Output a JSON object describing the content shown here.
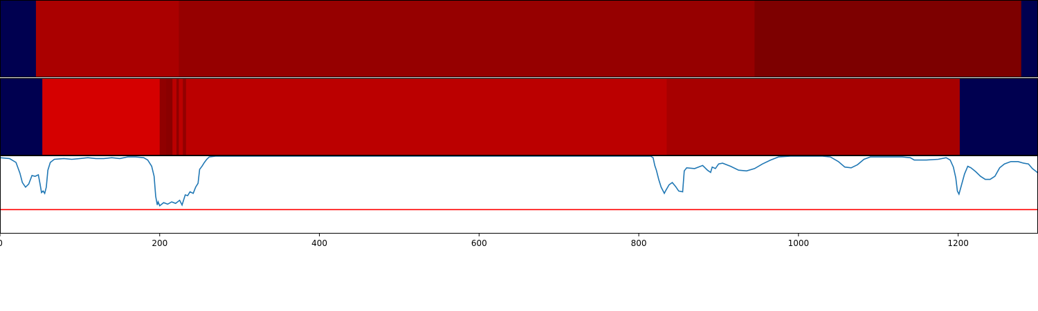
{
  "chart_data": [
    {
      "type": "heatmap",
      "panel": "top-band",
      "x": [
        0,
        1300
      ],
      "segments": [
        {
          "start": 0,
          "end": 45,
          "color": "#000050"
        },
        {
          "start": 45,
          "end": 224,
          "color": "#aa0000"
        },
        {
          "start": 224,
          "end": 945,
          "color": "#960000"
        },
        {
          "start": 945,
          "end": 1279,
          "color": "#7d0000"
        },
        {
          "start": 1279,
          "end": 1300,
          "color": "#000050"
        }
      ]
    },
    {
      "type": "heatmap",
      "panel": "middle-band",
      "x": [
        0,
        1300
      ],
      "segments": [
        {
          "start": 0,
          "end": 53,
          "color": "#000050"
        },
        {
          "start": 53,
          "end": 200,
          "color": "#d50000"
        },
        {
          "start": 200,
          "end": 208,
          "color": "#900000"
        },
        {
          "start": 208,
          "end": 216,
          "color": "#8a0000"
        },
        {
          "start": 216,
          "end": 221,
          "color": "#bb0000"
        },
        {
          "start": 221,
          "end": 224,
          "color": "#8f0000"
        },
        {
          "start": 224,
          "end": 229,
          "color": "#bb0000"
        },
        {
          "start": 229,
          "end": 233,
          "color": "#940000"
        },
        {
          "start": 233,
          "end": 835,
          "color": "#bb0000"
        },
        {
          "start": 835,
          "end": 1202,
          "color": "#a70000"
        },
        {
          "start": 1202,
          "end": 1300,
          "color": "#000050"
        }
      ]
    },
    {
      "type": "line",
      "panel": "bottom-line",
      "xlim": [
        0,
        1300
      ],
      "ylim": [
        0,
        1
      ],
      "xticks": [
        0,
        200,
        400,
        600,
        800,
        1000,
        1200
      ],
      "xtick_labels": [
        "0",
        "200",
        "400",
        "600",
        "800",
        "1000",
        "1200"
      ],
      "threshold": 0.31,
      "threshold_color": "#ff0000",
      "series_color": "#1f77b4",
      "points": [
        [
          0,
          0.98
        ],
        [
          12,
          0.97
        ],
        [
          20,
          0.92
        ],
        [
          25,
          0.78
        ],
        [
          28,
          0.66
        ],
        [
          32,
          0.6
        ],
        [
          36,
          0.64
        ],
        [
          40,
          0.75
        ],
        [
          44,
          0.74
        ],
        [
          48,
          0.76
        ],
        [
          50,
          0.65
        ],
        [
          52,
          0.53
        ],
        [
          54,
          0.55
        ],
        [
          56,
          0.52
        ],
        [
          58,
          0.6
        ],
        [
          60,
          0.82
        ],
        [
          63,
          0.92
        ],
        [
          68,
          0.96
        ],
        [
          80,
          0.97
        ],
        [
          90,
          0.96
        ],
        [
          100,
          0.97
        ],
        [
          110,
          0.98
        ],
        [
          120,
          0.97
        ],
        [
          130,
          0.97
        ],
        [
          140,
          0.98
        ],
        [
          150,
          0.97
        ],
        [
          160,
          0.99
        ],
        [
          170,
          0.99
        ],
        [
          180,
          0.98
        ],
        [
          185,
          0.95
        ],
        [
          190,
          0.87
        ],
        [
          193,
          0.74
        ],
        [
          195,
          0.48
        ],
        [
          197,
          0.37
        ],
        [
          198,
          0.41
        ],
        [
          200,
          0.36
        ],
        [
          205,
          0.4
        ],
        [
          210,
          0.38
        ],
        [
          215,
          0.41
        ],
        [
          220,
          0.39
        ],
        [
          225,
          0.43
        ],
        [
          228,
          0.37
        ],
        [
          232,
          0.5
        ],
        [
          235,
          0.49
        ],
        [
          238,
          0.54
        ],
        [
          242,
          0.52
        ],
        [
          245,
          0.6
        ],
        [
          248,
          0.65
        ],
        [
          250,
          0.83
        ],
        [
          253,
          0.87
        ],
        [
          256,
          0.92
        ],
        [
          259,
          0.96
        ],
        [
          262,
          0.99
        ],
        [
          270,
          1.0
        ],
        [
          400,
          1.0
        ],
        [
          600,
          1.0
        ],
        [
          800,
          1.0
        ],
        [
          815,
          1.0
        ],
        [
          818,
          0.98
        ],
        [
          820,
          0.88
        ],
        [
          822,
          0.82
        ],
        [
          825,
          0.7
        ],
        [
          828,
          0.6
        ],
        [
          832,
          0.52
        ],
        [
          834,
          0.56
        ],
        [
          838,
          0.63
        ],
        [
          842,
          0.66
        ],
        [
          846,
          0.61
        ],
        [
          850,
          0.55
        ],
        [
          855,
          0.54
        ],
        [
          857,
          0.81
        ],
        [
          860,
          0.85
        ],
        [
          870,
          0.84
        ],
        [
          880,
          0.88
        ],
        [
          886,
          0.82
        ],
        [
          890,
          0.79
        ],
        [
          892,
          0.86
        ],
        [
          896,
          0.84
        ],
        [
          900,
          0.9
        ],
        [
          905,
          0.91
        ],
        [
          915,
          0.87
        ],
        [
          925,
          0.82
        ],
        [
          935,
          0.81
        ],
        [
          945,
          0.84
        ],
        [
          955,
          0.9
        ],
        [
          965,
          0.95
        ],
        [
          975,
          0.99
        ],
        [
          990,
          1.0
        ],
        [
          1010,
          1.0
        ],
        [
          1030,
          1.0
        ],
        [
          1040,
          0.99
        ],
        [
          1050,
          0.93
        ],
        [
          1058,
          0.86
        ],
        [
          1066,
          0.85
        ],
        [
          1074,
          0.89
        ],
        [
          1082,
          0.96
        ],
        [
          1090,
          0.99
        ],
        [
          1110,
          0.99
        ],
        [
          1130,
          0.99
        ],
        [
          1140,
          0.98
        ],
        [
          1145,
          0.95
        ],
        [
          1160,
          0.95
        ],
        [
          1175,
          0.96
        ],
        [
          1185,
          0.98
        ],
        [
          1190,
          0.95
        ],
        [
          1194,
          0.86
        ],
        [
          1197,
          0.72
        ],
        [
          1199,
          0.55
        ],
        [
          1201,
          0.51
        ],
        [
          1204,
          0.62
        ],
        [
          1208,
          0.77
        ],
        [
          1212,
          0.87
        ],
        [
          1216,
          0.85
        ],
        [
          1222,
          0.8
        ],
        [
          1228,
          0.74
        ],
        [
          1234,
          0.7
        ],
        [
          1240,
          0.7
        ],
        [
          1246,
          0.74
        ],
        [
          1252,
          0.85
        ],
        [
          1258,
          0.9
        ],
        [
          1266,
          0.93
        ],
        [
          1275,
          0.93
        ],
        [
          1282,
          0.91
        ],
        [
          1288,
          0.9
        ],
        [
          1293,
          0.84
        ],
        [
          1298,
          0.8
        ],
        [
          1300,
          0.78
        ]
      ]
    }
  ]
}
